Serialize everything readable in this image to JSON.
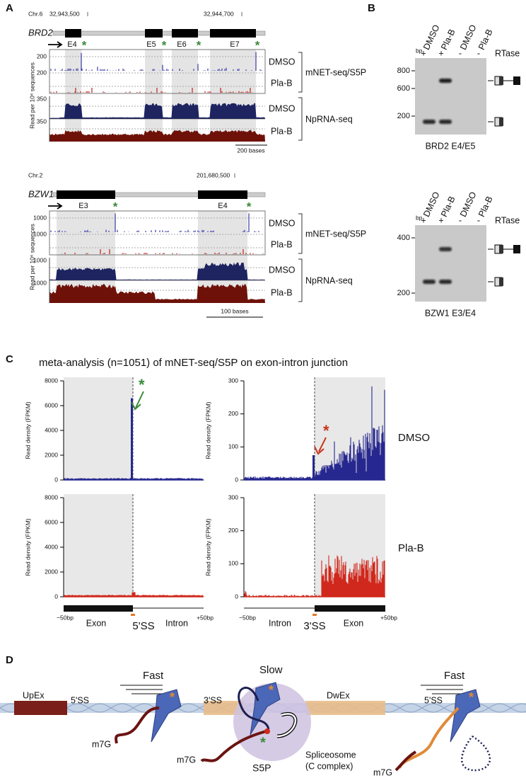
{
  "panel_labels": [
    "A",
    "B",
    "C",
    "D"
  ],
  "star": "*",
  "panel_a": {
    "y_label": "Read per 10⁶ sequences",
    "conditions": [
      "DMSO",
      "Pla-B"
    ],
    "assays": [
      "mNET-seq/S5P",
      "NpRNA-seq"
    ],
    "brd2": {
      "chromosome": "Chr.6",
      "coordinates": [
        "32,943,500",
        "32,944,700"
      ],
      "gene": "BRD2",
      "exons": [
        "E4",
        "E5",
        "E6",
        "E7"
      ],
      "mnet_ticks": [
        "200",
        "200"
      ],
      "nprna_ticks": [
        "350",
        "350"
      ],
      "scale_bar": "200 bases"
    },
    "bzw1": {
      "chromosome": "Chr.2",
      "coordinates": [
        "201,680,500"
      ],
      "gene": "BZW1",
      "exons": [
        "E3",
        "E4"
      ],
      "mnet_ticks": [
        "1000",
        "1000"
      ],
      "nprna_ticks": [
        "1000",
        "1000"
      ],
      "scale_bar": "100 bases"
    }
  },
  "panel_b": {
    "gels": [
      {
        "lanes": [
          "DMSO",
          "Pla-B",
          "DMSO",
          "Pla-B"
        ],
        "rtase_signs": [
          "+",
          "+",
          "-",
          "-"
        ],
        "rtase_label": "RTase",
        "bp_label": "bp",
        "ladder": [
          800,
          600,
          200
        ],
        "caption": "BRD2 E4/E5"
      },
      {
        "lanes": [
          "DMSO",
          "Pla-B",
          "DMSO",
          "Pla-B"
        ],
        "rtase_signs": [
          "+",
          "+",
          "-",
          "-"
        ],
        "rtase_label": "RTase",
        "bp_label": "bp",
        "ladder": [
          400,
          200
        ],
        "caption": "BZW1 E3/E4"
      }
    ]
  },
  "panel_c": {
    "title": "meta-analysis (n=1051) of mNET-seq/S5P on exon-intron junction",
    "y_label": "Read density (FPKM)",
    "conditions": [
      "DMSO",
      "Pla-B"
    ],
    "left": {
      "ylim": [
        0,
        8000
      ],
      "yticks": [
        0,
        2000,
        4000,
        6000,
        8000
      ],
      "dmso_peak": 6600,
      "axis": [
        "−50bp",
        "Exon",
        "5'SS",
        "Intron",
        "+50bp"
      ]
    },
    "right": {
      "ylim": [
        0,
        300
      ],
      "yticks": [
        0,
        100,
        200,
        300
      ],
      "dmso_peak": 75,
      "axis": [
        "−50bp",
        "Intron",
        "3'SS",
        "Exon",
        "+50bp"
      ]
    }
  },
  "panel_d": {
    "upex": "UpEx",
    "dwex": "DwEx",
    "ss5": "5'SS",
    "ss3": "3'SS",
    "fast": "Fast",
    "slow": "Slow",
    "m7g": "m7G",
    "spliceosome": "Spliceosome",
    "complex": "(C complex)",
    "s5p": "S5P"
  }
}
